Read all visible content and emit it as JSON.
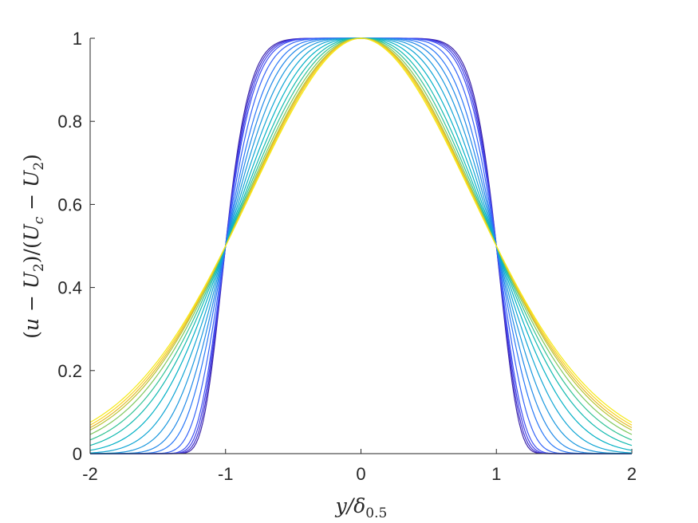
{
  "chart_data": {
    "type": "line",
    "title": "",
    "xlabel": "y/δ0.5",
    "ylabel": "(u − U2)/(Uc − U2)",
    "xlim": [
      -2,
      2
    ],
    "ylim": [
      0,
      1
    ],
    "xticks": [
      -2,
      -1,
      0,
      1,
      2
    ],
    "xtick_labels": [
      "-2",
      "-1",
      "0",
      "1",
      "2"
    ],
    "yticks": [
      0,
      0.2,
      0.4,
      0.6,
      0.8,
      1
    ],
    "ytick_labels": [
      "0",
      "0.2",
      "0.4",
      "0.6",
      "0.8",
      "1"
    ],
    "grid": false,
    "legend": "none",
    "series_profile": "exp(-ln2 * |y|^n), shape exponent n per series",
    "series": [
      {
        "color": "#3e26a8",
        "n": 8.5
      },
      {
        "color": "#4133d0",
        "n": 8.0
      },
      {
        "color": "#4441e6",
        "n": 7.5
      },
      {
        "color": "#3f50f2",
        "n": 7.0
      },
      {
        "color": "#3463f7",
        "n": 6.0
      },
      {
        "color": "#2a78f7",
        "n": 5.0
      },
      {
        "color": "#2189e8",
        "n": 4.3
      },
      {
        "color": "#1a98de",
        "n": 3.7
      },
      {
        "color": "#10a5d4",
        "n": 3.2
      },
      {
        "color": "#03b1c5",
        "n": 2.8
      },
      {
        "color": "#13bab0",
        "n": 2.5
      },
      {
        "color": "#33c395",
        "n": 2.3
      },
      {
        "color": "#7ec75d",
        "n": 2.15
      },
      {
        "color": "#b9c434",
        "n": 2.05
      },
      {
        "color": "#e5ba2b",
        "n": 2.0
      },
      {
        "color": "#f9d41f",
        "n": 1.95
      },
      {
        "color": "#f4e918",
        "n": 1.9
      }
    ]
  }
}
